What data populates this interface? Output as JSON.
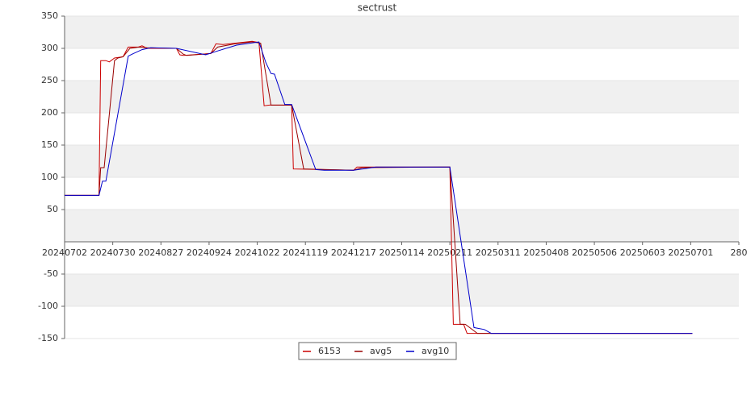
{
  "chart_data": {
    "type": "line",
    "title": "sectrust",
    "series": [
      {
        "name": "6153",
        "color": "#cc0000",
        "x": [
          "20240702",
          "20240722",
          "20240723",
          "20240726",
          "20240728",
          "20240731",
          "20240805",
          "20240808",
          "20240814",
          "20240816",
          "20240819",
          "20240905",
          "20240907",
          "20240909",
          "20240925",
          "20240928",
          "20241002",
          "20241009",
          "20241019",
          "20241023",
          "20241026",
          "20241029",
          "20241111",
          "20241112",
          "20241217",
          "20241219",
          "20250211",
          "20250213",
          "20250219",
          "20250221",
          "20250702"
        ],
        "values": [
          72,
          72,
          281,
          281,
          279,
          285,
          287,
          302,
          302,
          304,
          300,
          300,
          290,
          289,
          292,
          307,
          306,
          308,
          311,
          309,
          211,
          212,
          212,
          113,
          111,
          116,
          116,
          -128,
          -128,
          -142,
          -142
        ]
      },
      {
        "name": "avg5",
        "color": "#990000",
        "x": [
          "20240702",
          "20240722",
          "20240723",
          "20240725",
          "20240731",
          "20240802",
          "20240805",
          "20240809",
          "20240814",
          "20240819",
          "20240905",
          "20240909",
          "20240911",
          "20240925",
          "20240929",
          "20241009",
          "20241019",
          "20241024",
          "20241030",
          "20241111",
          "20241118",
          "20241217",
          "20241222",
          "20250211",
          "20250217",
          "20250220",
          "20250227",
          "20250702"
        ],
        "values": [
          72,
          72,
          115,
          115,
          281,
          285,
          287,
          300,
          302,
          301,
          300,
          291,
          289,
          292,
          302,
          307,
          310,
          308,
          212,
          212,
          113,
          111,
          115,
          116,
          -128,
          -128,
          -142,
          -142
        ]
      },
      {
        "name": "avg10",
        "color": "#0000cc",
        "x": [
          "20240702",
          "20240722",
          "20240724",
          "20240726",
          "20240808",
          "20240811",
          "20240816",
          "20240821",
          "20240905",
          "20240922",
          "20240929",
          "20241010",
          "20241023",
          "20241027",
          "20241030",
          "20241101",
          "20241107",
          "20241111",
          "20241125",
          "20241130",
          "20241217",
          "20241230",
          "20250211",
          "20250225",
          "20250303",
          "20250307",
          "20250702"
        ],
        "values": [
          72,
          72,
          94,
          94,
          288,
          292,
          298,
          301,
          300,
          290,
          296,
          305,
          310,
          278,
          261,
          260,
          213,
          213,
          112,
          111,
          111,
          116,
          116,
          -133,
          -136,
          -142,
          -142
        ]
      }
    ],
    "xlim": [
      "20240702",
      "20250729"
    ],
    "xticks": [
      "20240702",
      "20240730",
      "20240827",
      "20240924",
      "20241022",
      "20241119",
      "20241217",
      "20250114",
      "20250211",
      "20250311",
      "20250408",
      "20250506",
      "20250603",
      "20250701",
      {
        "value": "20250729",
        "label": "280"
      }
    ],
    "ylim": [
      -150,
      350
    ],
    "yticks": [
      -150,
      -100,
      -50,
      50,
      100,
      150,
      200,
      250,
      300,
      350
    ],
    "bands": true,
    "legend": "bottom"
  }
}
